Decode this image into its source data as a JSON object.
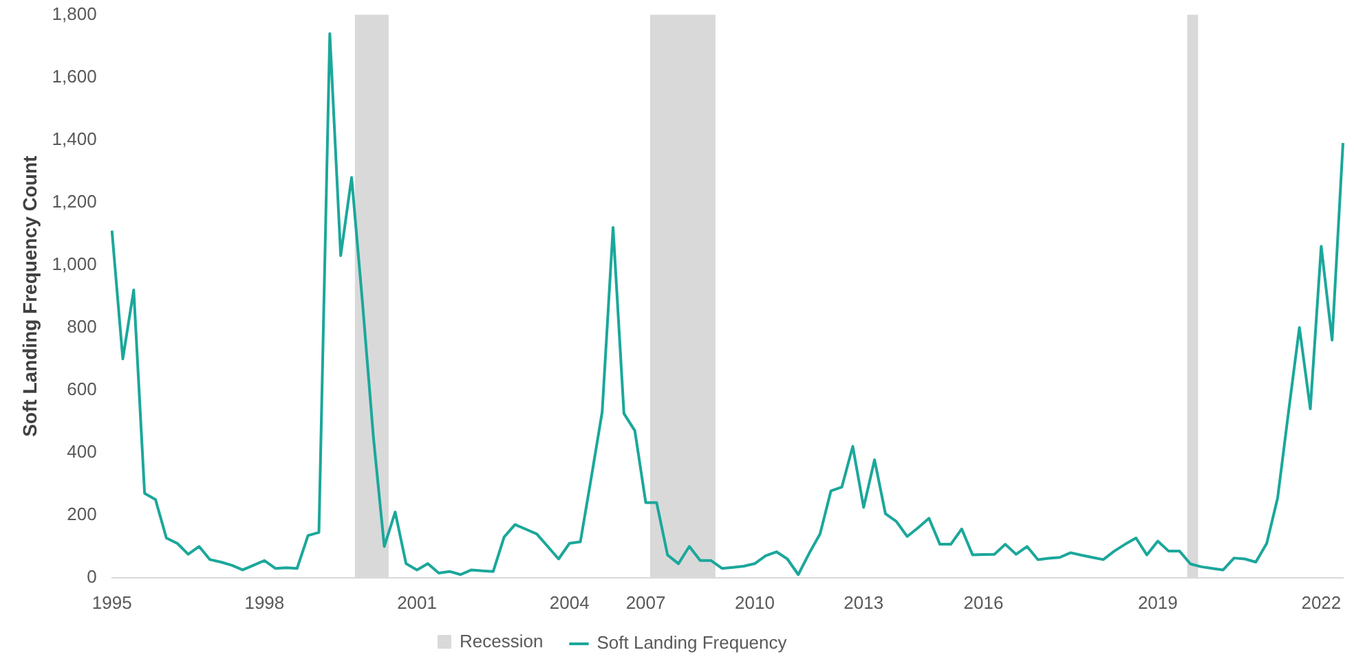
{
  "chart_data": {
    "type": "line",
    "ylabel": "Soft Landing Frequency Count",
    "categories": [
      "1995",
      null,
      null,
      null,
      null,
      null,
      null,
      null,
      null,
      null,
      null,
      null,
      null,
      null,
      "1998",
      null,
      null,
      null,
      null,
      null,
      null,
      null,
      null,
      null,
      null,
      null,
      null,
      null,
      "2001",
      null,
      null,
      null,
      null,
      null,
      null,
      null,
      null,
      null,
      null,
      null,
      null,
      null,
      "2004",
      null,
      null,
      null,
      null,
      null,
      null,
      "2007",
      null,
      null,
      null,
      null,
      null,
      null,
      null,
      null,
      null,
      "2010",
      null,
      null,
      null,
      null,
      null,
      null,
      null,
      null,
      null,
      "2013",
      null,
      null,
      null,
      null,
      null,
      null,
      null,
      null,
      null,
      null,
      "2016",
      null,
      null,
      null,
      null,
      null,
      null,
      null,
      null,
      null,
      null,
      null,
      null,
      null,
      null,
      null,
      "2019",
      null,
      null,
      null,
      null,
      null,
      null,
      null,
      null,
      null,
      null,
      null,
      null,
      null,
      null,
      "2022",
      null,
      null
    ],
    "series": [
      {
        "name": "Soft Landing Frequency",
        "color": "#1ba79b",
        "values": [
          1110,
          700,
          920,
          270,
          250,
          127,
          110,
          75,
          100,
          58,
          50,
          40,
          25,
          40,
          55,
          30,
          32,
          30,
          135,
          145,
          1740,
          1030,
          1280,
          880,
          450,
          100,
          210,
          45,
          25,
          45,
          15,
          20,
          10,
          25,
          22,
          20,
          130,
          170,
          155,
          140,
          100,
          60,
          110,
          115,
          320,
          530,
          1120,
          525,
          470,
          240,
          240,
          73,
          45,
          100,
          55,
          55,
          30,
          33,
          37,
          45,
          70,
          83,
          60,
          10,
          78,
          140,
          278,
          290,
          420,
          225,
          377,
          205,
          180,
          132,
          160,
          190,
          107,
          107,
          156,
          73,
          74,
          75,
          107,
          75,
          100,
          58,
          62,
          65,
          80,
          72,
          65,
          58,
          85,
          107,
          127,
          73,
          117,
          85,
          85,
          44,
          35,
          30,
          25,
          63,
          60,
          50,
          110,
          255,
          530,
          800,
          540,
          1060,
          760,
          1390
        ]
      }
    ],
    "ylim": [
      0,
      1800
    ],
    "yticks": [
      0,
      200,
      400,
      600,
      800,
      {
        "value": 1000,
        "label": "1,000"
      },
      {
        "value": 1200,
        "label": "1,200"
      },
      {
        "value": 1400,
        "label": "1,400"
      },
      {
        "value": 1600,
        "label": "1,600"
      },
      {
        "value": 1800,
        "label": "1,800"
      }
    ],
    "annotations": [
      "Recession"
    ],
    "grid": false,
    "legend": "bottom",
    "marker": "none",
    "line_style": "solid"
  }
}
